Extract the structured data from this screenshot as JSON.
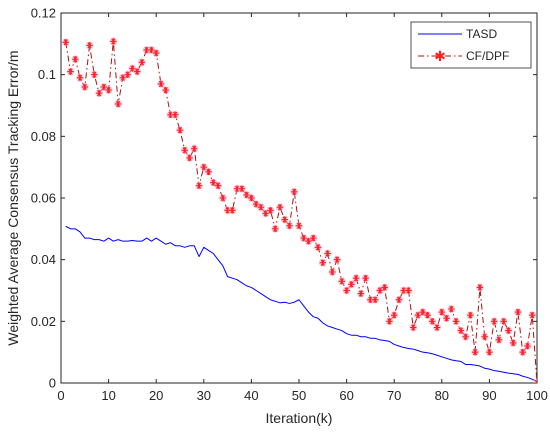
{
  "chart_data": {
    "type": "line",
    "title": "",
    "xlabel": "Iteration(k)",
    "ylabel": "Weighted Average Consensus Tracking Error/m",
    "xlim": [
      0,
      100
    ],
    "ylim": [
      0,
      0.12
    ],
    "xticks": [
      0,
      10,
      20,
      30,
      40,
      50,
      60,
      70,
      80,
      90,
      100
    ],
    "yticks": [
      0,
      0.02,
      0.04,
      0.06,
      0.08,
      0.1,
      0.12
    ],
    "xtick_labels": [
      "0",
      "10",
      "20",
      "30",
      "40",
      "50",
      "60",
      "70",
      "80",
      "90",
      "100"
    ],
    "ytick_labels": [
      "0",
      "0.02",
      "0.04",
      "0.06",
      "0.08",
      "0.1",
      "0.12"
    ],
    "grid": false,
    "legend_position": "top-right",
    "x": [
      1,
      2,
      3,
      4,
      5,
      6,
      7,
      8,
      9,
      10,
      11,
      12,
      13,
      14,
      15,
      16,
      17,
      18,
      19,
      20,
      21,
      22,
      23,
      24,
      25,
      26,
      27,
      28,
      29,
      30,
      31,
      32,
      33,
      34,
      35,
      36,
      37,
      38,
      39,
      40,
      41,
      42,
      43,
      44,
      45,
      46,
      47,
      48,
      49,
      50,
      51,
      52,
      53,
      54,
      55,
      56,
      57,
      58,
      59,
      60,
      61,
      62,
      63,
      64,
      65,
      66,
      67,
      68,
      69,
      70,
      71,
      72,
      73,
      74,
      75,
      76,
      77,
      78,
      79,
      80,
      81,
      82,
      83,
      84,
      85,
      86,
      87,
      88,
      89,
      90,
      91,
      92,
      93,
      94,
      95,
      96,
      97,
      98,
      99,
      100
    ],
    "series": [
      {
        "name": "TASD",
        "color": "#0000ff",
        "style": "solid",
        "marker": "none",
        "values": [
          0.0508,
          0.05,
          0.05,
          0.049,
          0.047,
          0.047,
          0.0465,
          0.0465,
          0.046,
          0.047,
          0.046,
          0.0465,
          0.046,
          0.046,
          0.0462,
          0.046,
          0.046,
          0.047,
          0.046,
          0.047,
          0.046,
          0.045,
          0.0455,
          0.0445,
          0.0445,
          0.044,
          0.0445,
          0.0445,
          0.041,
          0.044,
          0.043,
          0.042,
          0.04,
          0.038,
          0.0345,
          0.034,
          0.0335,
          0.0325,
          0.0315,
          0.031,
          0.03,
          0.029,
          0.028,
          0.027,
          0.0265,
          0.026,
          0.0262,
          0.0258,
          0.0262,
          0.027,
          0.025,
          0.023,
          0.0215,
          0.021,
          0.0195,
          0.0185,
          0.018,
          0.0175,
          0.017,
          0.016,
          0.0155,
          0.0155,
          0.015,
          0.015,
          0.0145,
          0.0145,
          0.014,
          0.0138,
          0.0135,
          0.0125,
          0.012,
          0.0115,
          0.0112,
          0.011,
          0.0105,
          0.01,
          0.0098,
          0.0095,
          0.009,
          0.0085,
          0.008,
          0.0075,
          0.0072,
          0.007,
          0.006,
          0.006,
          0.0058,
          0.0055,
          0.0048,
          0.0045,
          0.004,
          0.0038,
          0.0035,
          0.0032,
          0.003,
          0.0028,
          0.0022,
          0.0018,
          0.0012,
          0.0005
        ]
      },
      {
        "name": "CF/DPF",
        "color": "#b01010",
        "marker_color": "#ff2020",
        "style": "dash-dot",
        "marker": "star",
        "values": [
          0.1105,
          0.101,
          0.105,
          0.099,
          0.096,
          0.1095,
          0.1,
          0.094,
          0.096,
          0.095,
          0.1108,
          0.0905,
          0.099,
          0.1,
          0.102,
          0.101,
          0.104,
          0.108,
          0.108,
          0.107,
          0.097,
          0.095,
          0.087,
          0.087,
          0.082,
          0.0755,
          0.073,
          0.076,
          0.064,
          0.07,
          0.0685,
          0.065,
          0.064,
          0.06,
          0.056,
          0.056,
          0.063,
          0.063,
          0.061,
          0.06,
          0.058,
          0.057,
          0.055,
          0.056,
          0.05,
          0.057,
          0.053,
          0.051,
          0.062,
          0.051,
          0.047,
          0.046,
          0.047,
          0.044,
          0.039,
          0.042,
          0.036,
          0.04,
          0.033,
          0.03,
          0.032,
          0.034,
          0.029,
          0.034,
          0.027,
          0.027,
          0.03,
          0.031,
          0.02,
          0.022,
          0.027,
          0.03,
          0.03,
          0.018,
          0.022,
          0.023,
          0.022,
          0.02,
          0.018,
          0.023,
          0.021,
          0.024,
          0.02,
          0.017,
          0.015,
          0.022,
          0.01,
          0.031,
          0.015,
          0.01,
          0.02,
          0.014,
          0.02,
          0.017,
          0.013,
          0.023,
          0.01,
          0.012,
          0.022,
          0.0
        ]
      }
    ]
  }
}
